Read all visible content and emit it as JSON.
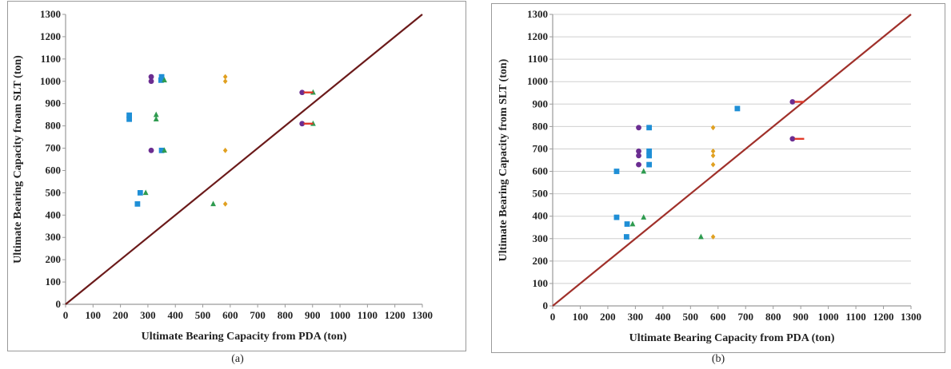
{
  "chart_data": [
    {
      "type": "scatter",
      "caption": "(a)",
      "xlabel": "Ultimate Bearing Capacity from PDA (ton)",
      "ylabel": "Ultimate Bearing Capacity froam  SLT (ton)",
      "xlim": [
        0,
        1300
      ],
      "ylim": [
        0,
        1300
      ],
      "ticks": [
        0,
        100,
        200,
        300,
        400,
        500,
        600,
        700,
        800,
        900,
        1000,
        1100,
        1200,
        1300
      ],
      "grid": false,
      "colors": {
        "line": "#6b1a1a",
        "axis": "#9a9a9a"
      },
      "reference_line": {
        "x": [
          0,
          1300
        ],
        "y": [
          0,
          1300
        ]
      },
      "series": [
        {
          "marker": "square",
          "color": "#1f8fd6",
          "points": [
            [
              232,
              830
            ],
            [
              232,
              848
            ],
            [
              272,
              500
            ],
            [
              262,
              450
            ],
            [
              348,
              1005
            ],
            [
              350,
              1020
            ],
            [
              350,
              690
            ]
          ]
        },
        {
          "marker": "circle",
          "color": "#6b2d91",
          "points": [
            [
              312,
              1020
            ],
            [
              312,
              1000
            ],
            [
              312,
              690
            ],
            [
              862,
              950
            ],
            [
              862,
              810
            ]
          ]
        },
        {
          "marker": "triangle",
          "color": "#2e9b4f",
          "points": [
            [
              330,
              850
            ],
            [
              330,
              830
            ],
            [
              292,
              500
            ],
            [
              360,
              1005
            ],
            [
              360,
              690
            ],
            [
              538,
              450
            ],
            [
              902,
              950
            ],
            [
              902,
              810
            ]
          ]
        },
        {
          "marker": "diamond",
          "color": "#e0a020",
          "points": [
            [
              582,
              1020
            ],
            [
              582,
              1000
            ],
            [
              582,
              690
            ],
            [
              582,
              450
            ]
          ]
        },
        {
          "marker": "dash",
          "color": "#e23a2a",
          "points": [
            [
              885,
              950
            ],
            [
              885,
              810
            ]
          ]
        }
      ]
    },
    {
      "type": "scatter",
      "caption": "(b)",
      "xlabel": "Ultimate Bearing Capacity from PDA (ton)",
      "ylabel": "Ultimate Bearing Capacity from SLT (ton)",
      "xlim": [
        0,
        1300
      ],
      "ylim": [
        0,
        1300
      ],
      "ticks": [
        0,
        100,
        200,
        300,
        400,
        500,
        600,
        700,
        800,
        900,
        1000,
        1100,
        1200,
        1300
      ],
      "grid": true,
      "colors": {
        "line": "#a0302a",
        "axis": "#9a9a9a"
      },
      "reference_line": {
        "x": [
          0,
          1300
        ],
        "y": [
          0,
          1300
        ]
      },
      "series": [
        {
          "marker": "square",
          "color": "#1f8fd6",
          "points": [
            [
              232,
              600
            ],
            [
              232,
              395
            ],
            [
              270,
              365
            ],
            [
              268,
              308
            ],
            [
              350,
              795
            ],
            [
              350,
              690
            ],
            [
              350,
              670
            ],
            [
              350,
              630
            ],
            [
              670,
              880
            ]
          ]
        },
        {
          "marker": "circle",
          "color": "#6b2d91",
          "points": [
            [
              312,
              795
            ],
            [
              312,
              690
            ],
            [
              312,
              670
            ],
            [
              312,
              630
            ],
            [
              870,
              910
            ],
            [
              870,
              745
            ]
          ]
        },
        {
          "marker": "triangle",
          "color": "#2e9b4f",
          "points": [
            [
              330,
              600
            ],
            [
              330,
              395
            ],
            [
              290,
              365
            ],
            [
              538,
              308
            ]
          ]
        },
        {
          "marker": "diamond",
          "color": "#e0a020",
          "points": [
            [
              582,
              795
            ],
            [
              582,
              690
            ],
            [
              582,
              670
            ],
            [
              582,
              630
            ],
            [
              582,
              308
            ]
          ]
        },
        {
          "marker": "dash",
          "color": "#e23a2a",
          "points": [
            [
              895,
              910
            ],
            [
              895,
              745
            ]
          ]
        }
      ]
    }
  ]
}
